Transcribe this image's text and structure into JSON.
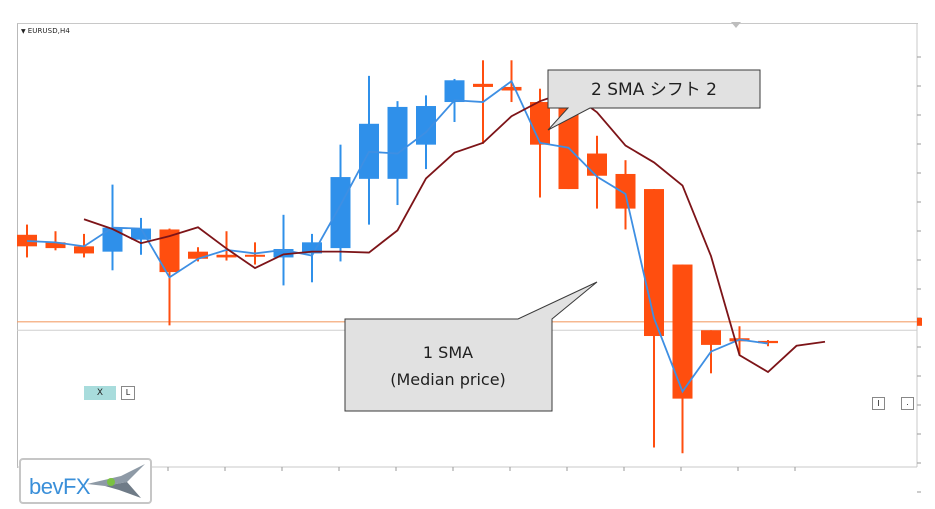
{
  "symbol": {
    "arrow_glyph": "▼",
    "label": "EURUSD,H4"
  },
  "callouts": {
    "upper": {
      "label": "2 SMA シフト 2"
    },
    "lower": {
      "line1": "1 SMA",
      "line2": "(Median price)"
    }
  },
  "buttons": {
    "x_label": "X",
    "l_label": "L",
    "i_label": "I",
    "dot_label": "."
  },
  "logo": {
    "text": "bevFX"
  },
  "colors": {
    "bull_candle": "#2f90ea",
    "bear_candle": "#ff4e0f",
    "sma_median": "#3e8fe3",
    "sma_shifted": "#7d1418",
    "price_line": "#f4a06c",
    "callout_bg": "#e1e1e1"
  },
  "chart_data": [
    {
      "type": "candlestick",
      "title": "EURUSD,H4",
      "ylim": [
        0,
        100
      ],
      "grid": false,
      "candles": [
        {
          "o": 52.3,
          "h": 54.6,
          "l": 47.2,
          "c": 49.7
        },
        {
          "o": 50.6,
          "h": 53.1,
          "l": 48.8,
          "c": 49.3
        },
        {
          "o": 49.7,
          "h": 52.5,
          "l": 47.2,
          "c": 48.1
        },
        {
          "o": 48.5,
          "h": 63.6,
          "l": 44.3,
          "c": 53.9
        },
        {
          "o": 51.2,
          "h": 56.1,
          "l": 47.8,
          "c": 53.7
        },
        {
          "o": 53.5,
          "h": 53.7,
          "l": 31.9,
          "c": 43.9
        },
        {
          "o": 48.5,
          "h": 49.5,
          "l": 46.3,
          "c": 46.9
        },
        {
          "o": 47.8,
          "h": 53.1,
          "l": 46.5,
          "c": 47.2
        },
        {
          "o": 47.8,
          "h": 50.6,
          "l": 45.6,
          "c": 47.4
        },
        {
          "o": 47.2,
          "h": 56.8,
          "l": 40.9,
          "c": 49.1
        },
        {
          "o": 48.1,
          "h": 52.5,
          "l": 41.6,
          "c": 50.6
        },
        {
          "o": 49.3,
          "h": 72.6,
          "l": 46.3,
          "c": 65.3
        },
        {
          "o": 64.9,
          "h": 88.1,
          "l": 54.6,
          "c": 77.3
        },
        {
          "o": 64.9,
          "h": 82.4,
          "l": 59.0,
          "c": 81.1
        },
        {
          "o": 72.6,
          "h": 83.7,
          "l": 67.1,
          "c": 81.3
        },
        {
          "o": 82.2,
          "h": 87.4,
          "l": 77.7,
          "c": 87.1
        },
        {
          "o": 86.3,
          "h": 91.6,
          "l": 72.8,
          "c": 85.6
        },
        {
          "o": 85.6,
          "h": 91.6,
          "l": 82.2,
          "c": 84.8
        },
        {
          "o": 82.2,
          "h": 85.2,
          "l": 60.7,
          "c": 72.6
        },
        {
          "o": 81.1,
          "h": 81.1,
          "l": 62.6,
          "c": 62.6
        },
        {
          "o": 70.6,
          "h": 74.6,
          "l": 58.2,
          "c": 65.6
        },
        {
          "o": 66.0,
          "h": 69.1,
          "l": 53.5,
          "c": 58.2
        },
        {
          "o": 62.6,
          "h": 62.6,
          "l": 4.4,
          "c": 29.5
        },
        {
          "o": 45.6,
          "h": 45.6,
          "l": 3.1,
          "c": 15.4
        },
        {
          "o": 30.8,
          "h": 30.8,
          "l": 21.1,
          "c": 27.5
        },
        {
          "o": 29.0,
          "h": 31.7,
          "l": 25.2,
          "c": 28.3
        },
        {
          "o": 28.4,
          "h": 28.6,
          "l": 27.2,
          "c": 27.9
        }
      ],
      "series": [
        {
          "name": "1 SMA (Median price)",
          "values": [
            50.9,
            50.6,
            49.7,
            53.9,
            53.7,
            42.7,
            46.9,
            48.9,
            48.1,
            48.9,
            47.6,
            59.0,
            71.0,
            70.6,
            75.4,
            82.6,
            82.2,
            86.9,
            73.0,
            71.9,
            65.4,
            61.5,
            33.5,
            17.0,
            26.0,
            28.7,
            27.8
          ]
        },
        {
          "name": "2 SMA シフト 2",
          "x_shift": 2,
          "values": [
            55.8,
            53.6,
            50.4,
            52.0,
            54.0,
            49.2,
            44.8,
            47.9,
            48.5,
            48.5,
            48.3,
            53.3,
            65.0,
            70.8,
            73.0,
            79.0,
            82.4,
            84.6,
            79.9,
            72.4,
            68.6,
            63.4,
            47.5,
            25.2,
            21.4,
            27.3,
            28.2
          ]
        }
      ],
      "horizontal_line": 32.7,
      "horizontal_line_grey": 30.8
    }
  ]
}
